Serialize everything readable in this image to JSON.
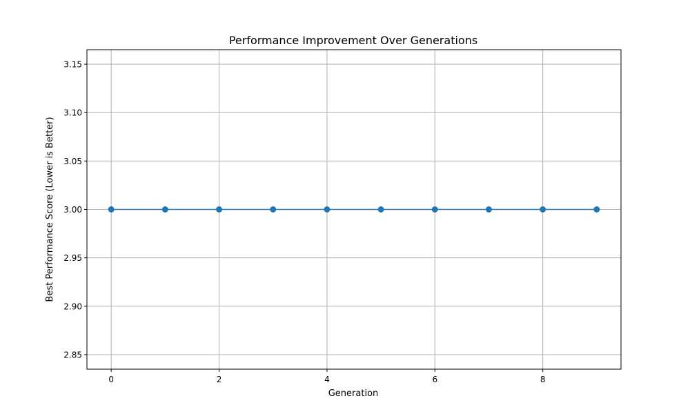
{
  "chart_data": {
    "type": "line",
    "title": "Performance Improvement Over Generations",
    "xlabel": "Generation",
    "ylabel": "Best Performance Score (Lower is Better)",
    "x": [
      0,
      1,
      2,
      3,
      4,
      5,
      6,
      7,
      8,
      9
    ],
    "series": [
      {
        "values": [
          3.0,
          3.0,
          3.0,
          3.0,
          3.0,
          3.0,
          3.0,
          3.0,
          3.0,
          3.0
        ]
      }
    ],
    "xlim": [
      -0.45,
      9.45
    ],
    "ylim": [
      2.835,
      3.165
    ],
    "xticks": [
      0,
      2,
      4,
      6,
      8
    ],
    "xtick_labels": [
      "0",
      "2",
      "4",
      "6",
      "8"
    ],
    "yticks": [
      2.85,
      2.9,
      2.95,
      3.0,
      3.05,
      3.1,
      3.15
    ],
    "ytick_labels": [
      "2.85",
      "2.90",
      "2.95",
      "3.00",
      "3.05",
      "3.10",
      "3.15"
    ],
    "grid": true,
    "marker": "circle",
    "colors": {
      "line": "#1f77b4",
      "grid": "#b0b0b0",
      "axes": "#000000"
    }
  }
}
